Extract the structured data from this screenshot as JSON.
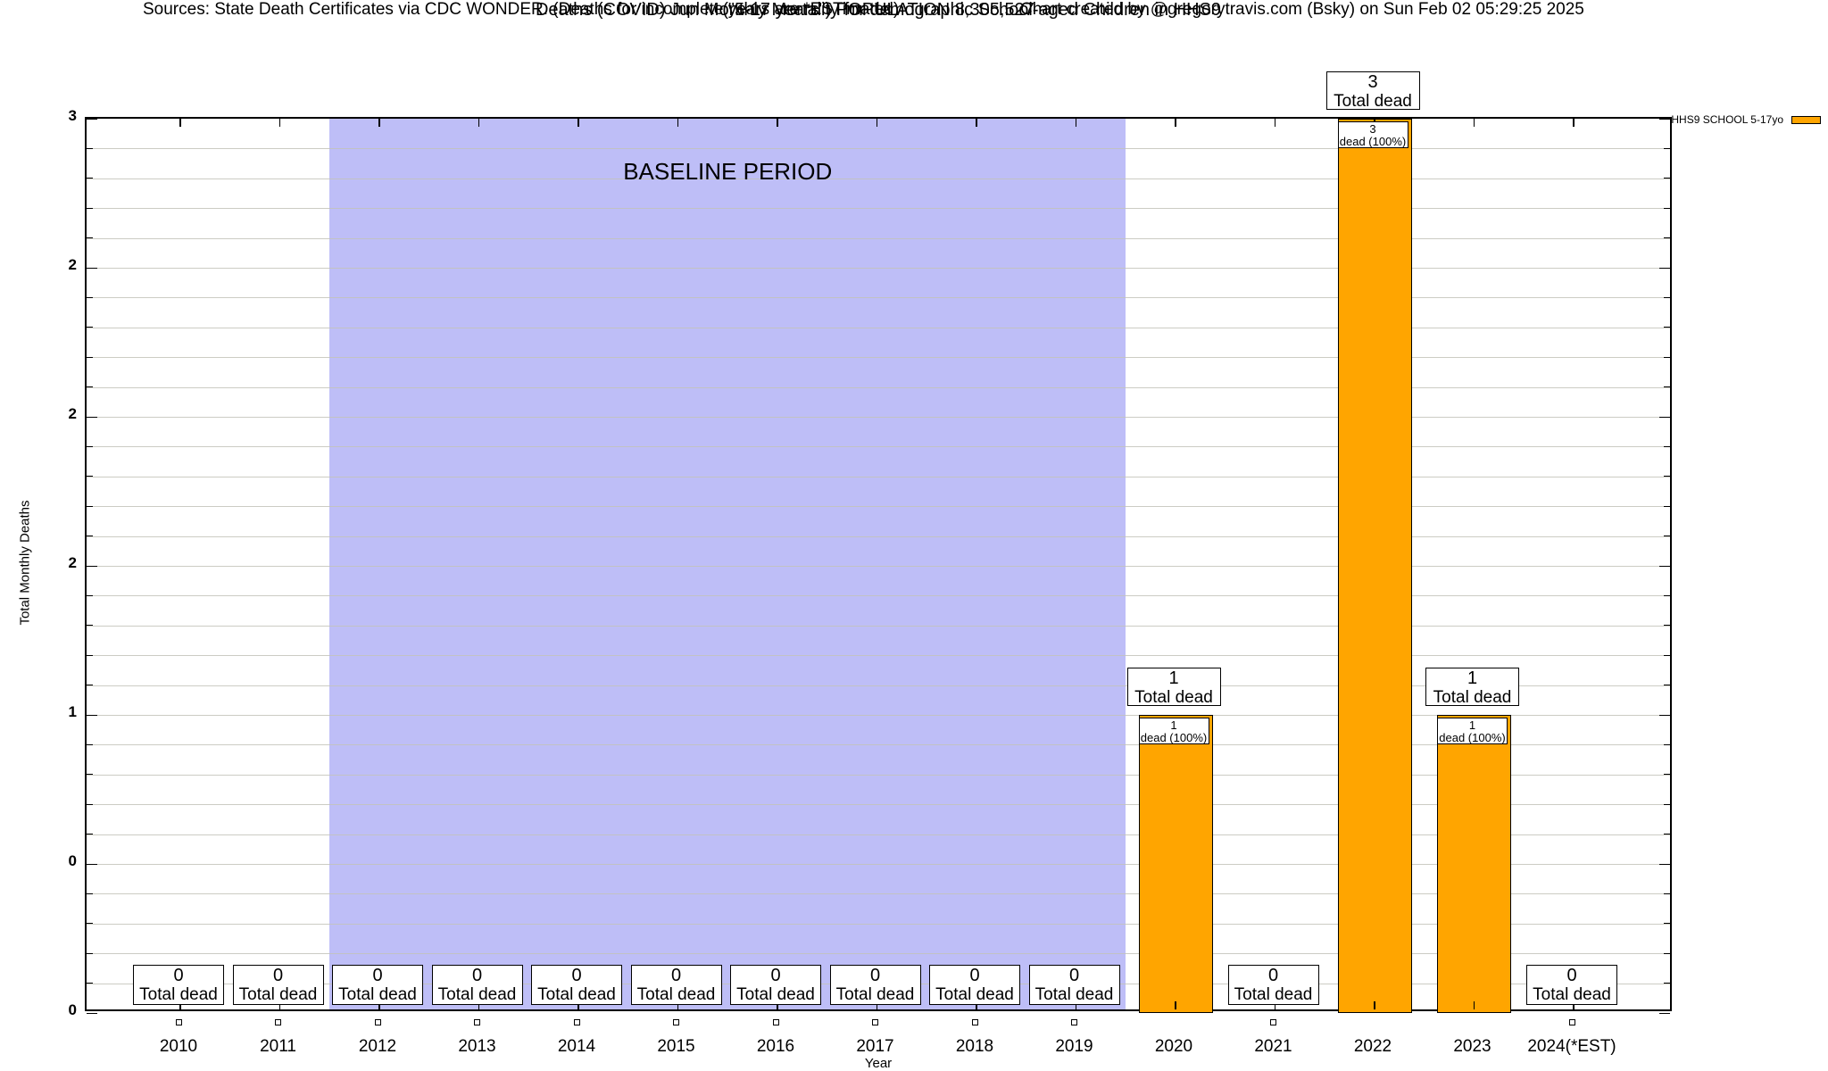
{
  "header": {
    "title_line1": "Deaths (COVID) Jun Monthly Mortality for demographic School-aged Children in HHS9",
    "title_line2": "(\"5-17 years\") POPULATION 8,305,527",
    "sources": "Sources: State Death Certificates via CDC WONDER. (Deaths for incomplete years are *ESTimated)",
    "credit": "Chart created by @gregorytravis.com (Bsky) on Sun Feb 02 05:29:25 2025"
  },
  "legend": {
    "label": "HHS9 SCHOOL 5-17yo",
    "swatch_color": "#ffa500"
  },
  "chart_data": {
    "type": "bar",
    "title": "Deaths (COVID) Jun Monthly Mortality for demographic School-aged Children in HHS9 (\"5-17 years\") POPULATION 8,305,527",
    "xlabel": "Year",
    "ylabel": "Total Monthly Deaths",
    "ylim": [
      0,
      3
    ],
    "ytick_values": [
      0,
      0.5,
      1,
      1.5,
      2,
      2.5,
      3
    ],
    "ytick_labels": [
      "0",
      "0",
      "1",
      "2",
      "2",
      "2",
      "3"
    ],
    "minor_grid_step": 0.1,
    "grid": "horizontal minor gridlines every 0.1",
    "categories": [
      "2010",
      "2011",
      "2012",
      "2013",
      "2014",
      "2015",
      "2016",
      "2017",
      "2018",
      "2019",
      "2020",
      "2021",
      "2022",
      "2023",
      "2024(*EST)"
    ],
    "series": [
      {
        "name": "HHS9 SCHOOL 5-17yo",
        "color": "#ffa500",
        "values": [
          0,
          0,
          0,
          0,
          0,
          0,
          0,
          0,
          0,
          0,
          1,
          0,
          3,
          1,
          0
        ]
      }
    ],
    "bar_annotations": {
      "total_box_suffix": "Total dead",
      "inner_box_suffix": "dead (100%)",
      "total_boxes": [
        {
          "category": "2010",
          "value": 0
        },
        {
          "category": "2011",
          "value": 0
        },
        {
          "category": "2012",
          "value": 0
        },
        {
          "category": "2013",
          "value": 0
        },
        {
          "category": "2014",
          "value": 0
        },
        {
          "category": "2015",
          "value": 0
        },
        {
          "category": "2016",
          "value": 0
        },
        {
          "category": "2017",
          "value": 0
        },
        {
          "category": "2018",
          "value": 0
        },
        {
          "category": "2019",
          "value": 0
        },
        {
          "category": "2020",
          "value": 1
        },
        {
          "category": "2021",
          "value": 0
        },
        {
          "category": "2022",
          "value": 3
        },
        {
          "category": "2023",
          "value": 1
        },
        {
          "category": "2024(*EST)",
          "value": 0
        }
      ],
      "inner_boxes": [
        {
          "category": "2020",
          "line1": "1",
          "line2": "dead (100%)"
        },
        {
          "category": "2022",
          "line1": "3",
          "line2": "dead (100%)"
        },
        {
          "category": "2023",
          "line1": "1",
          "line2": "dead (100%)"
        }
      ]
    },
    "baseline_band": {
      "label": "BASELINE PERIOD",
      "start_category": "2012",
      "end_category": "2019",
      "color": "#bebef7"
    },
    "legend_position": "top-right outside plot",
    "bar_color": "#ffa500",
    "background_color": "#ffffff"
  }
}
